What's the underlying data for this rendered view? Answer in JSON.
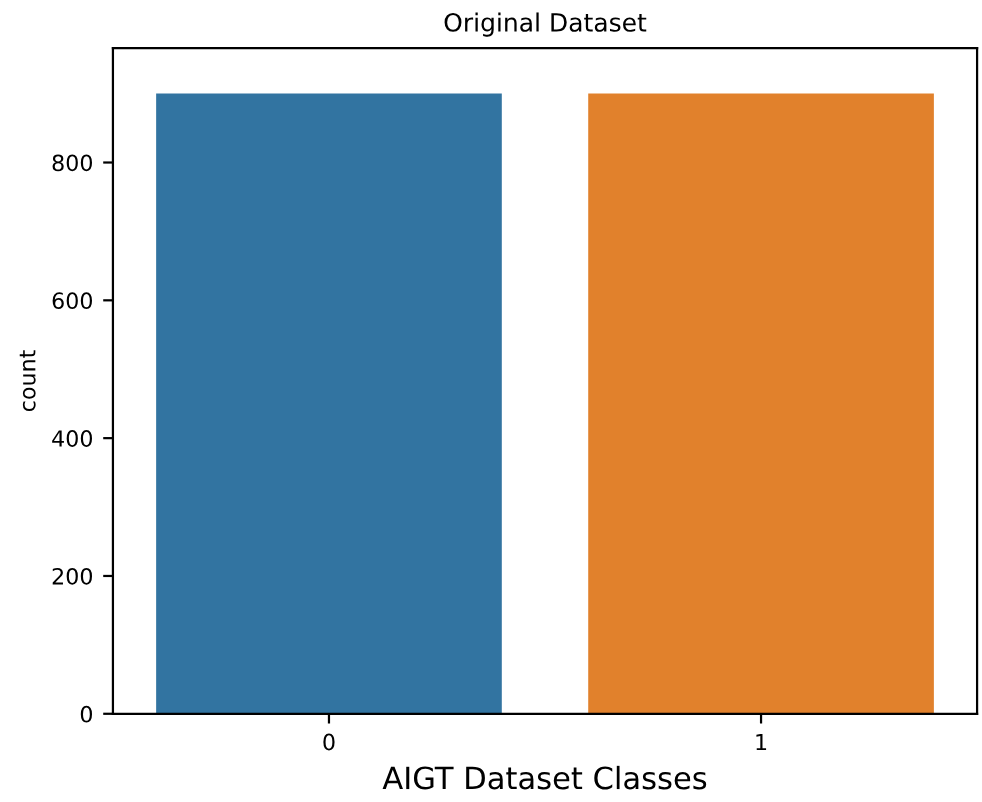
{
  "chart_data": {
    "type": "bar",
    "title": "Original Dataset",
    "xlabel": "AIGT Dataset Classes",
    "ylabel": "count",
    "categories": [
      "0",
      "1"
    ],
    "values": [
      900,
      900
    ],
    "colors": [
      "#3274a1",
      "#e1812c"
    ],
    "ylim": [
      0,
      966
    ],
    "yticks": [
      0,
      200,
      400,
      600,
      800
    ],
    "grid": false
  }
}
